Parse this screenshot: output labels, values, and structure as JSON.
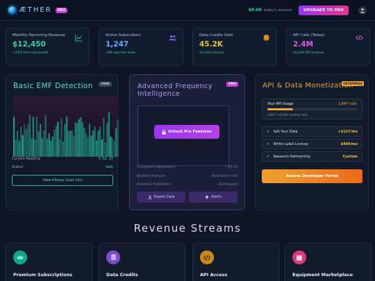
{
  "header": {
    "brand": "ÆTHER",
    "pro_badge": "PRO",
    "revenue_amount": "$0.00",
    "revenue_label": "today's revenue",
    "upgrade_label": "UPGRADE TO PRO",
    "logo_icon": "orb-logo-icon",
    "user_icon": "user-icon"
  },
  "stats": [
    {
      "label": "Monthly Recurring Revenue",
      "value": "$12,450",
      "sub": "+23% from last month",
      "value_color": "#3bd39b",
      "icon": "chart-up-icon"
    },
    {
      "label": "Active Subscribers",
      "value": "1,247",
      "sub": "+89 new this week",
      "value_color": "#6fa8ff",
      "icon": "users-icon"
    },
    {
      "label": "Data Credits Sold",
      "value": "45.2K",
      "sub": "$4,520 revenue",
      "value_color": "#e8c23a",
      "icon": "coins-icon"
    },
    {
      "label": "API Calls (Today)",
      "value": "2.4M",
      "sub": "$1,200 API revenue",
      "value_color": "#e05bd9",
      "icon": "code-icon"
    }
  ],
  "emf": {
    "title": "Basic EMF Detection",
    "tag": "FREE",
    "reading_label": "Current Reading",
    "reading_value": "0.62 μT",
    "status_label": "Status",
    "status_value": "Safe",
    "history_button": "View History (Last 1hr)"
  },
  "pro_panel": {
    "title": "Advanced Frequency Intelligence",
    "tag": "PRO",
    "unlock_label": "Unlock Pro Features",
    "rows": [
      {
        "label": "Schumann Resonance",
        "value": "7.83 Hz"
      },
      {
        "label": "Biofield Analysis",
        "value": "Available in Pro"
      },
      {
        "label": "Anomaly Prediction",
        "value": "AI-Powered"
      }
    ],
    "export_label": "Export Data",
    "alerts_label": "Alerts"
  },
  "monetization": {
    "title": "API & Data Monetization",
    "tag": "ENTERPRISE",
    "usage_label": "Your API Usage",
    "usage_calls": "2,847 calls",
    "usage_sub": "2,847 / 10,000 monthly limit",
    "usage_fraction": 0.2847,
    "offers": [
      {
        "name": "Sell Your Data",
        "price": "+$127/mo"
      },
      {
        "name": "White Label License",
        "price": "$499/mo"
      },
      {
        "name": "Research Partnership",
        "price": "Custom"
      }
    ],
    "portal_label": "Access Developer Portal"
  },
  "revenue_streams": {
    "title": "Revenue Streams",
    "cards": [
      {
        "label": "Premium Subscriptions",
        "icon": "crown-icon",
        "color": "#17a589"
      },
      {
        "label": "Data Credits",
        "icon": "coins-icon",
        "color": "#7c4dc4"
      },
      {
        "label": "API Access",
        "icon": "code-icon",
        "color": "#c88a1a"
      },
      {
        "label": "Equipment Marketplace",
        "icon": "store-icon",
        "color": "#d93a7a"
      }
    ]
  }
}
